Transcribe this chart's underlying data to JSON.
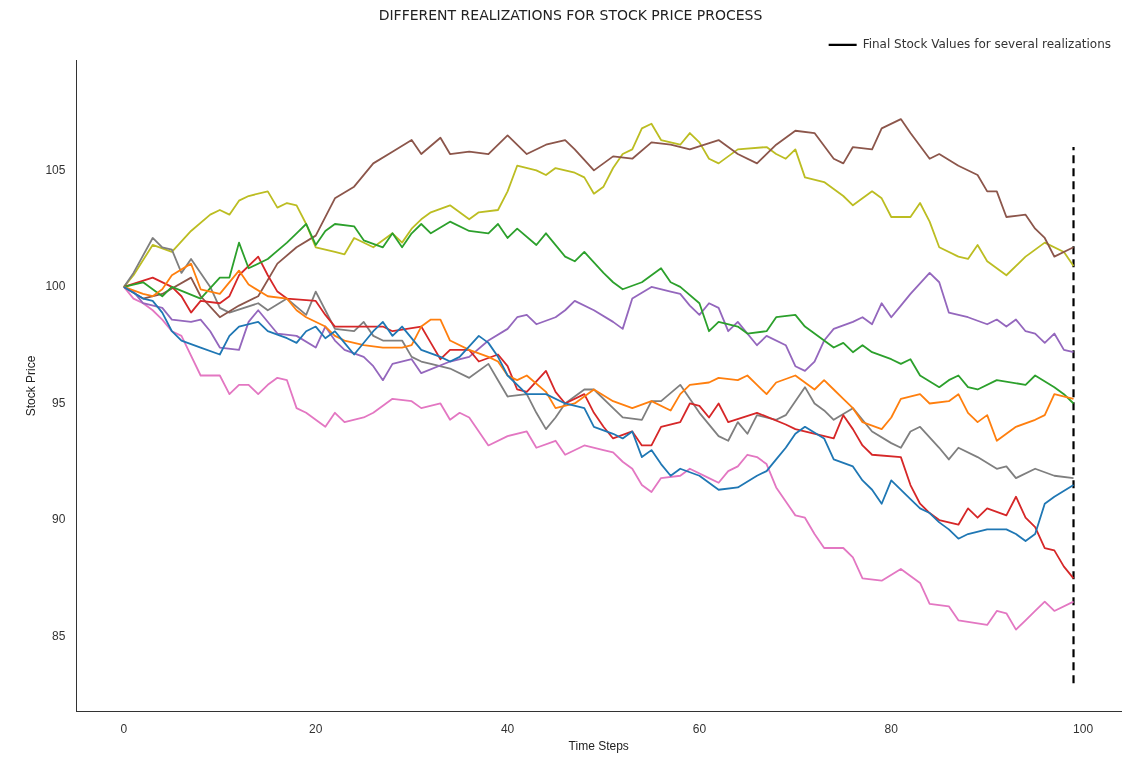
{
  "chart_data": {
    "type": "line",
    "title": "DIFFERENT REALIZATIONS FOR STOCK PRICE PROCESS",
    "xlabel": "Time Steps",
    "ylabel": "Stock Price",
    "xlim": [
      -4.95,
      103.95
    ],
    "ylim": [
      81.8,
      109.7
    ],
    "xticks": [
      0,
      20,
      40,
      60,
      80,
      100
    ],
    "yticks": [
      85,
      90,
      95,
      100,
      105
    ],
    "grid": false,
    "legend": "top right",
    "line_style": "solid",
    "series": [
      {
        "color": "#1f77b4",
        "x": [
          0,
          2,
          3,
          4,
          5,
          6,
          8,
          10,
          11,
          12,
          14,
          15,
          17,
          18,
          19,
          20,
          21,
          22,
          23,
          24,
          26,
          27,
          28,
          29,
          31,
          33,
          34,
          35,
          37,
          38,
          39,
          40,
          42,
          44,
          46,
          48,
          49,
          51,
          52,
          53,
          54,
          55,
          56,
          57,
          58,
          60,
          62,
          64,
          66,
          67,
          68,
          69,
          70,
          71,
          73,
          74,
          76,
          77,
          78,
          79,
          80,
          82,
          83,
          84,
          85,
          86,
          87,
          88,
          90,
          92,
          93,
          94,
          95,
          96,
          97,
          99
        ],
        "values": [
          100,
          99.5,
          99.4,
          98.9,
          98.1,
          97.7,
          97.4,
          97.1,
          97.9,
          98.3,
          98.5,
          98.1,
          97.8,
          97.6,
          98.1,
          98.3,
          97.8,
          98.1,
          97.6,
          97.1,
          98.1,
          98.5,
          97.9,
          98.3,
          97.3,
          97.0,
          96.8,
          97.0,
          97.9,
          97.6,
          97.0,
          96.2,
          95.4,
          95.4,
          95.0,
          94.8,
          94.0,
          93.7,
          93.5,
          93.8,
          92.7,
          93.0,
          92.4,
          91.9,
          92.2,
          91.9,
          91.3,
          91.4,
          91.9,
          92.1,
          92.6,
          93.1,
          93.7,
          94.0,
          93.5,
          92.6,
          92.3,
          91.7,
          91.3,
          90.7,
          91.7,
          90.9,
          90.5,
          90.3,
          89.9,
          89.6,
          89.2,
          89.4,
          89.6,
          89.6,
          89.4,
          89.1,
          89.4,
          90.7,
          91.0,
          91.5
        ]
      },
      {
        "color": "#ff7f0e",
        "x": [
          0,
          2,
          3,
          4,
          5,
          7,
          8,
          10,
          12,
          13,
          15,
          17,
          18,
          19,
          21,
          22,
          23,
          25,
          27,
          29,
          30,
          31,
          32,
          33,
          34,
          36,
          38,
          39,
          40,
          41,
          42,
          44,
          45,
          47,
          49,
          51,
          53,
          55,
          57,
          58,
          59,
          61,
          62,
          64,
          65,
          66,
          67,
          68,
          70,
          72,
          73,
          74,
          75,
          76,
          77,
          79,
          80,
          81,
          83,
          84,
          86,
          87,
          88,
          89,
          90,
          91,
          92,
          93,
          95,
          96,
          97,
          99
        ],
        "values": [
          100,
          99.7,
          99.6,
          99.9,
          100.5,
          101.0,
          99.9,
          99.7,
          100.7,
          100.1,
          99.6,
          99.5,
          99.0,
          98.7,
          98.3,
          97.9,
          97.7,
          97.5,
          97.4,
          97.4,
          97.5,
          98.3,
          98.6,
          98.6,
          97.7,
          97.3,
          97.0,
          96.8,
          96.2,
          96.0,
          96.2,
          95.5,
          94.8,
          95.0,
          95.6,
          95.1,
          94.8,
          95.1,
          94.7,
          95.4,
          95.8,
          95.9,
          96.1,
          96.0,
          96.2,
          95.8,
          95.4,
          95.9,
          96.2,
          95.6,
          96.0,
          95.6,
          95.2,
          94.8,
          94.2,
          93.9,
          94.4,
          95.2,
          95.4,
          95.0,
          95.1,
          95.4,
          94.6,
          94.2,
          94.5,
          93.4,
          93.7,
          94.0,
          94.3,
          94.5,
          95.4,
          95.2
        ]
      },
      {
        "color": "#2ca02c",
        "x": [
          0,
          2,
          4,
          5,
          8,
          10,
          11,
          12,
          13,
          15,
          17,
          18,
          19,
          20,
          21,
          22,
          24,
          25,
          27,
          28,
          29,
          30,
          31,
          32,
          34,
          36,
          38,
          39,
          40,
          41,
          43,
          44,
          46,
          47,
          48,
          50,
          51,
          52,
          54,
          56,
          57,
          58,
          60,
          61,
          62,
          64,
          65,
          67,
          68,
          70,
          71,
          73,
          74,
          75,
          76,
          77,
          78,
          80,
          81,
          82,
          83,
          85,
          86,
          87,
          88,
          89,
          91,
          94,
          95,
          97,
          98,
          99
        ],
        "values": [
          100,
          100.2,
          99.6,
          100,
          99.5,
          100.4,
          100.4,
          101.9,
          100.8,
          101.2,
          101.9,
          102.3,
          102.7,
          101.8,
          102.4,
          102.7,
          102.6,
          102.0,
          101.7,
          102.3,
          101.7,
          102.3,
          102.7,
          102.3,
          102.8,
          102.4,
          102.3,
          102.7,
          102.1,
          102.5,
          101.8,
          102.3,
          101.3,
          101.1,
          101.5,
          100.6,
          100.2,
          99.9,
          100.2,
          100.8,
          100.2,
          100.0,
          99.3,
          98.1,
          98.5,
          98.3,
          98.0,
          98.1,
          98.7,
          98.8,
          98.3,
          97.7,
          97.4,
          97.6,
          97.2,
          97.5,
          97.2,
          96.9,
          96.7,
          96.9,
          96.2,
          95.7,
          96.0,
          96.2,
          95.7,
          95.6,
          96.0,
          95.8,
          96.2,
          95.7,
          95.4,
          95.0
        ]
      },
      {
        "color": "#d62728",
        "x": [
          0,
          3,
          5,
          6,
          7,
          8,
          10,
          11,
          12,
          14,
          15,
          16,
          17,
          20,
          21,
          22,
          27,
          28,
          31,
          32,
          33,
          34,
          36,
          37,
          39,
          40,
          41,
          42,
          44,
          45,
          46,
          48,
          49,
          50,
          51,
          53,
          54,
          55,
          56,
          58,
          59,
          60,
          61,
          62,
          63,
          66,
          69,
          70,
          74,
          75,
          76,
          77,
          78,
          81,
          82,
          83,
          84,
          85,
          87,
          88,
          89,
          90,
          92,
          93,
          94,
          95,
          96,
          97,
          98,
          99
        ],
        "values": [
          100,
          100.4,
          100.0,
          99.6,
          98.9,
          99.4,
          99.3,
          99.6,
          100.5,
          101.3,
          100.5,
          99.8,
          99.5,
          99.4,
          98.8,
          98.3,
          98.3,
          98.1,
          98.3,
          97.6,
          96.9,
          97.3,
          97.3,
          96.8,
          97.1,
          96.6,
          95.6,
          95.5,
          96.4,
          95.5,
          95.0,
          95.4,
          94.6,
          94.0,
          93.5,
          93.8,
          93.2,
          93.2,
          94.0,
          94.2,
          95.0,
          94.9,
          94.4,
          95.0,
          94.2,
          94.6,
          94.1,
          93.9,
          93.5,
          94.5,
          93.9,
          93.2,
          92.8,
          92.7,
          91.5,
          90.7,
          90.3,
          90.0,
          89.8,
          90.5,
          90.1,
          90.5,
          90.2,
          91.0,
          90.1,
          89.7,
          88.8,
          88.7,
          88.0,
          87.5
        ]
      },
      {
        "color": "#9467bd",
        "x": [
          0,
          1,
          2,
          4,
          5,
          7,
          8,
          9,
          10,
          12,
          13,
          14,
          16,
          18,
          20,
          21,
          22,
          23,
          25,
          26,
          27,
          28,
          30,
          31,
          34,
          36,
          38,
          40,
          41,
          42,
          43,
          45,
          46,
          47,
          49,
          51,
          52,
          53,
          55,
          57,
          58,
          59,
          60,
          61,
          62,
          63,
          64,
          66,
          67,
          69,
          70,
          71,
          72,
          73,
          74,
          76,
          77,
          78,
          79,
          80,
          81,
          82,
          84,
          85,
          86,
          88,
          90,
          91,
          92,
          93,
          94,
          95,
          96,
          97,
          98,
          99
        ],
        "values": [
          100,
          99.8,
          99.3,
          99.1,
          98.6,
          98.5,
          98.6,
          98.1,
          97.4,
          97.3,
          98.5,
          99.0,
          98.0,
          97.9,
          97.4,
          98.3,
          97.7,
          97.3,
          97.0,
          96.6,
          96.0,
          96.7,
          96.9,
          96.3,
          96.8,
          97.0,
          97.7,
          98.2,
          98.7,
          98.8,
          98.4,
          98.7,
          99.0,
          99.4,
          99.0,
          98.5,
          98.2,
          99.5,
          100.0,
          99.8,
          99.7,
          99.2,
          98.8,
          99.3,
          99.1,
          98.1,
          98.5,
          97.5,
          97.9,
          97.5,
          96.6,
          96.4,
          96.8,
          97.7,
          98.2,
          98.5,
          98.7,
          98.4,
          99.3,
          98.7,
          99.2,
          99.7,
          100.6,
          100.2,
          98.9,
          98.7,
          98.4,
          98.6,
          98.3,
          98.6,
          98.1,
          98.0,
          97.6,
          98.0,
          97.3,
          97.2
        ]
      },
      {
        "color": "#8c564b",
        "x": [
          0,
          2,
          4,
          7,
          8,
          10,
          12,
          14,
          16,
          18,
          20,
          22,
          24,
          26,
          28,
          30,
          31,
          33,
          34,
          36,
          38,
          40,
          42,
          44,
          46,
          47,
          49,
          51,
          53,
          55,
          57,
          59,
          62,
          64,
          66,
          68,
          70,
          72,
          74,
          75,
          76,
          78,
          79,
          81,
          82,
          84,
          85,
          87,
          89,
          90,
          91,
          92,
          94,
          95,
          96,
          97,
          99
        ],
        "values": [
          100,
          99.5,
          99.7,
          100.4,
          99.6,
          98.7,
          99.2,
          99.6,
          101.0,
          101.7,
          102.2,
          103.8,
          104.3,
          105.3,
          105.8,
          106.3,
          105.7,
          106.4,
          105.7,
          105.8,
          105.7,
          106.5,
          105.7,
          106.1,
          106.3,
          105.9,
          105.0,
          105.6,
          105.5,
          106.2,
          106.1,
          105.9,
          106.3,
          105.7,
          105.3,
          106.1,
          106.7,
          106.6,
          105.5,
          105.3,
          106.0,
          105.9,
          106.8,
          107.2,
          106.6,
          105.5,
          105.7,
          105.2,
          104.8,
          104.1,
          104.1,
          103.0,
          103.1,
          102.5,
          102.1,
          101.3,
          101.7
        ]
      },
      {
        "color": "#e377c2",
        "x": [
          0,
          1,
          2,
          3,
          4,
          5,
          6,
          8,
          10,
          11,
          12,
          13,
          14,
          15,
          16,
          17,
          18,
          19,
          21,
          22,
          23,
          25,
          26,
          27,
          28,
          30,
          31,
          33,
          34,
          35,
          36,
          38,
          40,
          42,
          43,
          45,
          46,
          48,
          50,
          51,
          52,
          53,
          54,
          55,
          56,
          58,
          59,
          61,
          62,
          63,
          64,
          65,
          66,
          67,
          68,
          70,
          71,
          72,
          73,
          75,
          76,
          77,
          79,
          81,
          83,
          84,
          86,
          87,
          90,
          91,
          92,
          93,
          94,
          95,
          96,
          97,
          99
        ],
        "values": [
          100,
          99.5,
          99.3,
          99.0,
          98.6,
          98.1,
          97.9,
          96.2,
          96.2,
          95.4,
          95.8,
          95.8,
          95.4,
          95.8,
          96.1,
          96.0,
          94.8,
          94.6,
          94.0,
          94.6,
          94.2,
          94.4,
          94.6,
          94.9,
          95.2,
          95.1,
          94.8,
          95.0,
          94.3,
          94.6,
          94.4,
          93.2,
          93.6,
          93.8,
          93.1,
          93.4,
          92.8,
          93.2,
          93.0,
          92.9,
          92.5,
          92.2,
          91.5,
          91.2,
          91.8,
          91.9,
          92.2,
          91.8,
          91.6,
          92.1,
          92.3,
          92.8,
          92.7,
          92.4,
          91.4,
          90.2,
          90.1,
          89.4,
          88.8,
          88.8,
          88.4,
          87.5,
          87.4,
          87.9,
          87.3,
          86.4,
          86.3,
          85.7,
          85.5,
          86.1,
          86.0,
          85.3,
          85.7,
          86.1,
          86.5,
          86.1,
          86.5
        ]
      },
      {
        "color": "#7f7f7f",
        "x": [
          0,
          1,
          3,
          4,
          5,
          6,
          7,
          8,
          9,
          10,
          11,
          14,
          15,
          17,
          19,
          20,
          21,
          22,
          24,
          25,
          26,
          27,
          29,
          30,
          31,
          32,
          34,
          36,
          38,
          39,
          40,
          42,
          43,
          44,
          45,
          46,
          48,
          49,
          51,
          52,
          54,
          55,
          56,
          58,
          59,
          60,
          62,
          63,
          64,
          65,
          66,
          68,
          69,
          71,
          72,
          73,
          74,
          76,
          78,
          80,
          81,
          82,
          83,
          85,
          86,
          87,
          89,
          91,
          92,
          93,
          95,
          97,
          99
        ],
        "values": [
          100,
          100.6,
          102.1,
          101.7,
          101.6,
          100.6,
          101.2,
          100.6,
          100.0,
          99.1,
          98.9,
          99.3,
          99.0,
          99.5,
          98.8,
          99.8,
          99.0,
          98.2,
          98.1,
          98.5,
          97.9,
          97.7,
          97.7,
          97.0,
          96.8,
          96.7,
          96.5,
          96.1,
          96.7,
          96.0,
          95.3,
          95.4,
          94.6,
          93.9,
          94.4,
          95.0,
          95.6,
          95.6,
          94.8,
          94.4,
          94.3,
          95.1,
          95.1,
          95.8,
          95.2,
          94.6,
          93.6,
          93.4,
          94.2,
          93.7,
          94.5,
          94.3,
          94.5,
          95.7,
          95.0,
          94.7,
          94.3,
          94.8,
          93.8,
          93.3,
          93.1,
          93.8,
          94.0,
          93.1,
          92.6,
          93.1,
          92.7,
          92.2,
          92.3,
          91.8,
          92.2,
          91.9,
          91.8
        ]
      },
      {
        "color": "#bcbd22",
        "x": [
          0,
          1,
          3,
          5,
          7,
          9,
          10,
          11,
          12,
          13,
          15,
          16,
          17,
          18,
          19,
          20,
          22,
          23,
          24,
          26,
          27,
          28,
          29,
          30,
          31,
          32,
          34,
          36,
          37,
          39,
          40,
          41,
          43,
          44,
          45,
          47,
          48,
          49,
          50,
          51,
          52,
          53,
          54,
          55,
          56,
          58,
          59,
          60,
          61,
          62,
          63,
          64,
          67,
          68,
          69,
          70,
          71,
          73,
          75,
          76,
          77,
          78,
          79,
          80,
          82,
          83,
          84,
          85,
          87,
          88,
          89,
          90,
          91,
          92,
          94,
          96,
          98,
          99
        ],
        "values": [
          100,
          100.5,
          101.8,
          101.5,
          102.4,
          103.1,
          103.3,
          103.1,
          103.7,
          103.9,
          104.1,
          103.4,
          103.6,
          103.5,
          102.7,
          101.7,
          101.5,
          101.4,
          102.1,
          101.7,
          102.0,
          102.3,
          101.9,
          102.5,
          102.9,
          103.2,
          103.5,
          102.9,
          103.2,
          103.3,
          104.1,
          105.2,
          105.0,
          104.8,
          105.1,
          104.9,
          104.7,
          104.0,
          104.3,
          105.1,
          105.7,
          105.9,
          106.8,
          107.0,
          106.3,
          106.1,
          106.6,
          106.2,
          105.5,
          105.3,
          105.6,
          105.9,
          106.0,
          105.7,
          105.5,
          105.9,
          104.7,
          104.5,
          103.9,
          103.5,
          103.8,
          104.1,
          103.8,
          103.0,
          103.0,
          103.6,
          102.8,
          101.7,
          101.3,
          101.2,
          101.8,
          101.1,
          100.8,
          100.5,
          101.3,
          101.9,
          101.5,
          100.9
        ]
      },
      {
        "name": "Final Stock Values for several realizations",
        "color": "#000000",
        "line_style": "dashed",
        "x": [
          99,
          99
        ],
        "values": [
          83,
          106
        ]
      }
    ]
  }
}
